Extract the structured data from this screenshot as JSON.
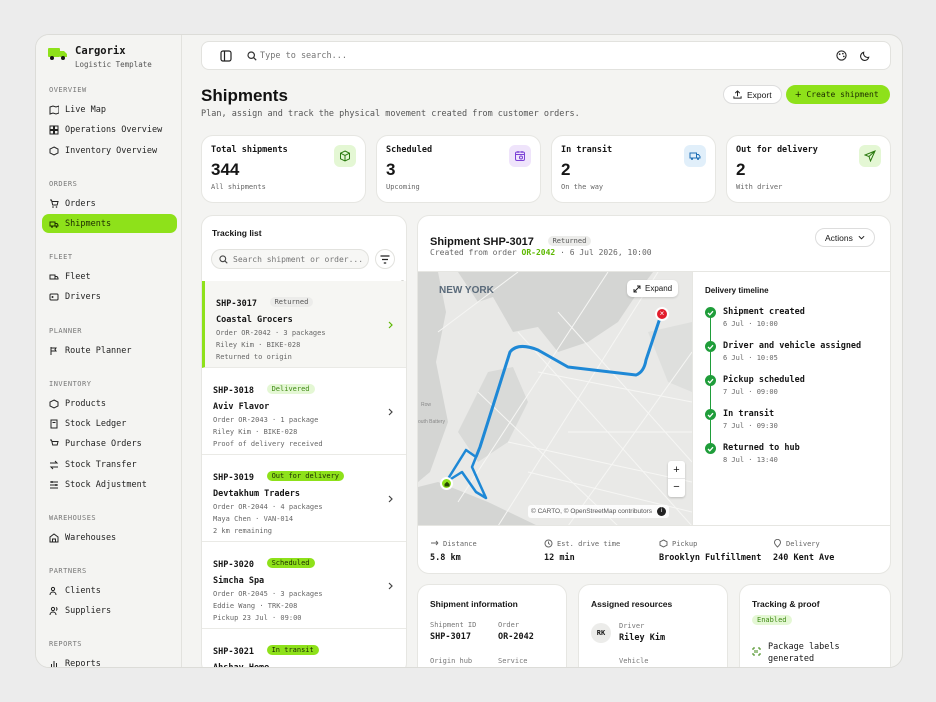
{
  "brand": {
    "name": "Cargorix",
    "subtitle": "Logistic Template",
    "accent": "#8ee11a"
  },
  "sidebar": {
    "sections": [
      {
        "title": "OVERVIEW",
        "items": [
          "Live Map",
          "Operations Overview",
          "Inventory Overview"
        ]
      },
      {
        "title": "ORDERS",
        "items": [
          "Orders",
          "Shipments"
        ]
      },
      {
        "title": "FLEET",
        "items": [
          "Fleet",
          "Drivers"
        ]
      },
      {
        "title": "PLANNER",
        "items": [
          "Route Planner"
        ]
      },
      {
        "title": "INVENTORY",
        "items": [
          "Products",
          "Stock Ledger",
          "Purchase Orders",
          "Stock Transfer",
          "Stock Adjustment"
        ]
      },
      {
        "title": "WAREHOUSES",
        "items": [
          "Warehouses"
        ]
      },
      {
        "title": "PARTNERS",
        "items": [
          "Clients",
          "Suppliers"
        ]
      },
      {
        "title": "REPORTS",
        "items": [
          "Reports"
        ]
      }
    ],
    "active": "Shipments"
  },
  "topbar": {
    "search_placeholder": "Type to search..."
  },
  "page": {
    "title": "Shipments",
    "subtitle": "Plan, assign and track the physical movement created from customer orders.",
    "export_label": "Export",
    "create_label": "Create shipment"
  },
  "stats": [
    {
      "label": "Total shipments",
      "value": "344",
      "sub": "All shipments",
      "icon": "box-icon",
      "color": "#e4f7d4"
    },
    {
      "label": "Scheduled",
      "value": "3",
      "sub": "Upcoming",
      "icon": "calendar-icon",
      "color": "#efe4fb"
    },
    {
      "label": "In transit",
      "value": "2",
      "sub": "On the way",
      "icon": "truck-icon",
      "color": "#e1effa"
    },
    {
      "label": "Out for delivery",
      "value": "2",
      "sub": "With driver",
      "icon": "send-icon",
      "color": "#e4f7d4"
    }
  ],
  "tracking": {
    "title": "Tracking list",
    "search_placeholder": "Search shipment or order...",
    "items": [
      {
        "id": "SHP-3017",
        "status": "Returned",
        "name": "Coastal Grocers",
        "line1": "Order OR-2042 · 3 packages",
        "line2": "Riley Kim · BIKE-028",
        "line3": "Returned to origin"
      },
      {
        "id": "SHP-3018",
        "status": "Delivered",
        "name": "Aviv Flavor",
        "line1": "Order OR-2043 · 1 package",
        "line2": "Riley Kim · BIKE-028",
        "line3": "Proof of delivery received"
      },
      {
        "id": "SHP-3019",
        "status": "Out for delivery",
        "name": "Devtakhum Traders",
        "line1": "Order OR-2044 · 4 packages",
        "line2": "Maya Chen · VAN-014",
        "line3": "2 km remaining"
      },
      {
        "id": "SHP-3020",
        "status": "Scheduled",
        "name": "Simcha Spa",
        "line1": "Order OR-2045 · 3 packages",
        "line2": "Eddie Wang · TRK-208",
        "line3": "Pickup 23 Jul · 09:00"
      },
      {
        "id": "SHP-3021",
        "status": "In transit",
        "name": "Ahshav Home",
        "line1": "",
        "line2": "",
        "line3": ""
      }
    ]
  },
  "detail": {
    "title": "Shipment SHP-3017",
    "status": "Returned",
    "created_prefix": "Created from order",
    "order": "OR-2042",
    "created_suffix": "· 6 Jul 2026, 10:00",
    "actions_label": "Actions",
    "map": {
      "city": "NEW YORK",
      "expand_label": "Expand",
      "attribution": "© CARTO, © OpenStreetMap contributors",
      "zoom_in": "+",
      "zoom_out": "−",
      "label_row": "Row",
      "label_battery": "outh Battery"
    },
    "timeline_title": "Delivery timeline",
    "timeline": [
      {
        "title": "Shipment created",
        "time": "6 Jul · 10:00"
      },
      {
        "title": "Driver and vehicle assigned",
        "time": "6 Jul · 10:05"
      },
      {
        "title": "Pickup scheduled",
        "time": "7 Jul · 09:00"
      },
      {
        "title": "In transit",
        "time": "7 Jul · 09:30"
      },
      {
        "title": "Returned to hub",
        "time": "8 Jul · 13:40"
      }
    ],
    "metrics": [
      {
        "label": "Distance",
        "value": "5.8 km"
      },
      {
        "label": "Est. drive time",
        "value": "12 min"
      },
      {
        "label": "Pickup",
        "value": "Brooklyn Fulfillment"
      },
      {
        "label": "Delivery",
        "value": "240 Kent Ave"
      }
    ]
  },
  "info": {
    "title": "Shipment information",
    "shipment_id_label": "Shipment ID",
    "shipment_id": "SHP-3017",
    "order_label": "Order",
    "order": "OR-2042",
    "origin_label": "Origin hub",
    "service_label": "Service"
  },
  "resources": {
    "title": "Assigned resources",
    "driver_label": "Driver",
    "driver": "Riley Kim",
    "initials": "RK",
    "vehicle_label": "Vehicle"
  },
  "proof": {
    "title": "Tracking & proof",
    "badge": "Enabled",
    "item": "Package labels generated"
  }
}
